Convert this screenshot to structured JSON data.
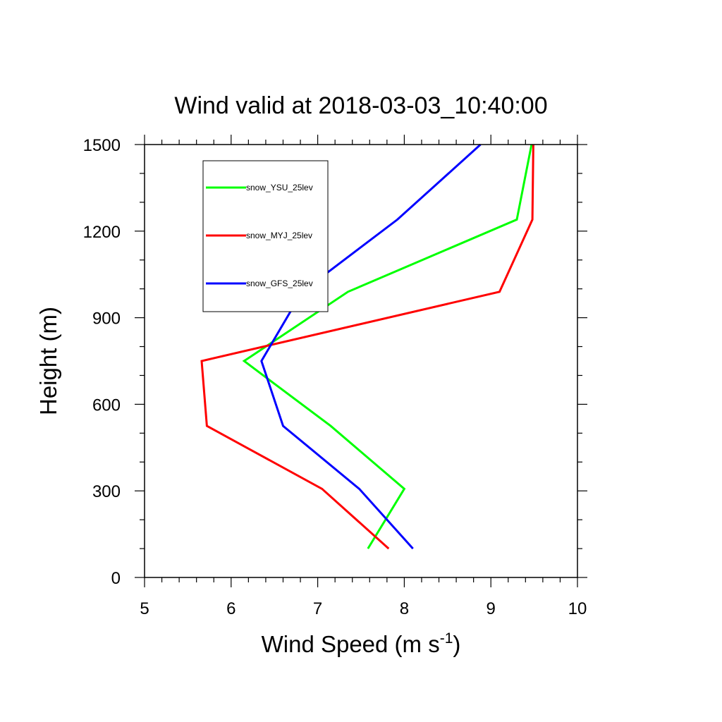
{
  "chart_data": {
    "type": "line",
    "title": "Wind valid at 2018-03-03_10:40:00",
    "xlabel": "Wind Speed (m s",
    "xlabel_superscript": "-1",
    "xlabel_suffix": ")",
    "ylabel": "Height (m)",
    "xlim": [
      5,
      10
    ],
    "ylim": [
      0,
      1500
    ],
    "xticks": [
      5,
      6,
      7,
      8,
      9,
      10
    ],
    "yticks": [
      0,
      300,
      600,
      900,
      1200,
      1500
    ],
    "grid": false,
    "legend_position": "top-left",
    "series": [
      {
        "name": "snow_YSU_25lev",
        "color": "#00ff00",
        "points": [
          [
            7.58,
            100
          ],
          [
            8.0,
            307
          ],
          [
            7.15,
            525
          ],
          [
            6.15,
            750
          ],
          [
            7.35,
            990
          ],
          [
            9.3,
            1240
          ],
          [
            9.47,
            1500
          ]
        ]
      },
      {
        "name": "snow_MYJ_25lev",
        "color": "#ff0000",
        "points": [
          [
            7.82,
            100
          ],
          [
            7.05,
            307
          ],
          [
            5.72,
            525
          ],
          [
            5.66,
            750
          ],
          [
            9.1,
            990
          ],
          [
            9.48,
            1240
          ],
          [
            9.49,
            1500
          ]
        ]
      },
      {
        "name": "snow_GFS_25lev",
        "color": "#0000ff",
        "points": [
          [
            8.1,
            100
          ],
          [
            7.48,
            307
          ],
          [
            6.6,
            525
          ],
          [
            6.35,
            750
          ],
          [
            6.82,
            990
          ],
          [
            7.92,
            1240
          ],
          [
            8.88,
            1500
          ]
        ]
      }
    ]
  }
}
